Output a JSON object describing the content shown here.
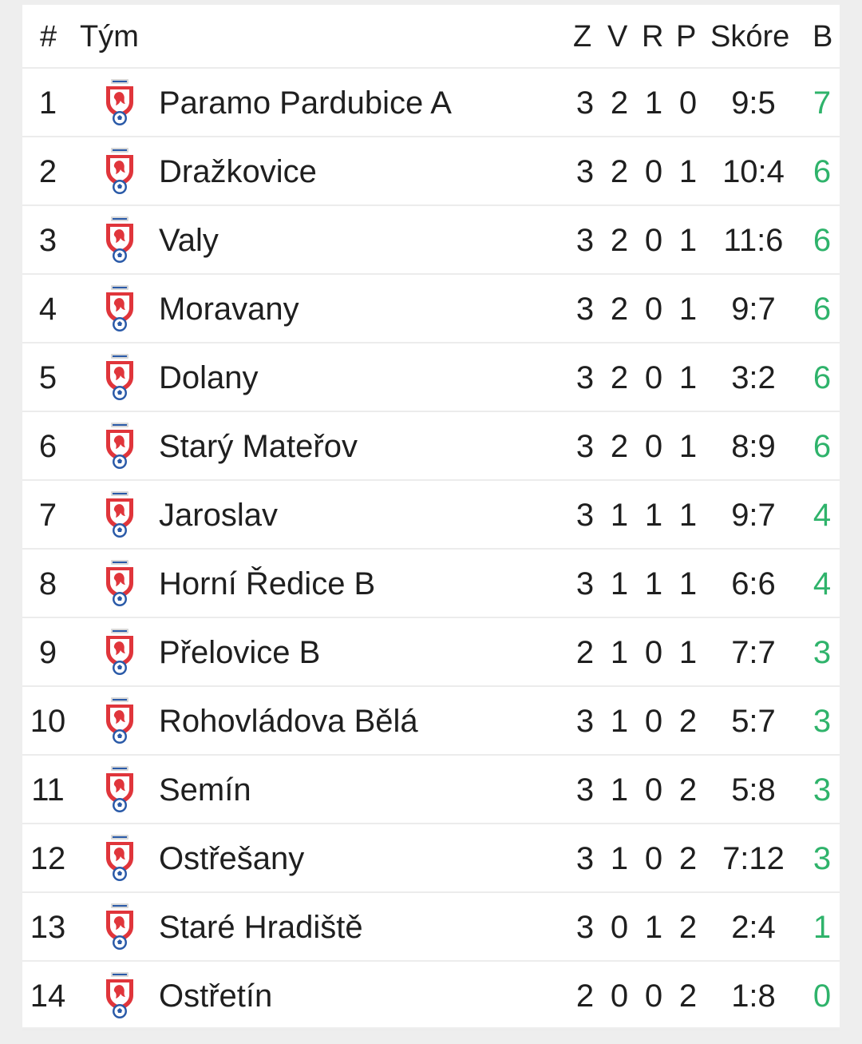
{
  "header": {
    "rank": "#",
    "team": "Tým",
    "played": "Z",
    "won": "V",
    "drawn": "R",
    "lost": "P",
    "score": "Skóre",
    "points": "B"
  },
  "logo_icon": "facr-crest-icon",
  "colors": {
    "points": "#2fb36b",
    "crest_red": "#e0353b",
    "crest_blue": "#2a5aa8"
  },
  "rows": [
    {
      "rank": "1",
      "team": "Paramo Pardubice A",
      "z": "3",
      "v": "2",
      "r": "1",
      "p": "0",
      "score": "9:5",
      "points": "7"
    },
    {
      "rank": "2",
      "team": "Dražkovice",
      "z": "3",
      "v": "2",
      "r": "0",
      "p": "1",
      "score": "10:4",
      "points": "6"
    },
    {
      "rank": "3",
      "team": "Valy",
      "z": "3",
      "v": "2",
      "r": "0",
      "p": "1",
      "score": "11:6",
      "points": "6"
    },
    {
      "rank": "4",
      "team": "Moravany",
      "z": "3",
      "v": "2",
      "r": "0",
      "p": "1",
      "score": "9:7",
      "points": "6"
    },
    {
      "rank": "5",
      "team": "Dolany",
      "z": "3",
      "v": "2",
      "r": "0",
      "p": "1",
      "score": "3:2",
      "points": "6"
    },
    {
      "rank": "6",
      "team": "Starý Mateřov",
      "z": "3",
      "v": "2",
      "r": "0",
      "p": "1",
      "score": "8:9",
      "points": "6"
    },
    {
      "rank": "7",
      "team": "Jaroslav",
      "z": "3",
      "v": "1",
      "r": "1",
      "p": "1",
      "score": "9:7",
      "points": "4"
    },
    {
      "rank": "8",
      "team": "Horní Ředice B",
      "z": "3",
      "v": "1",
      "r": "1",
      "p": "1",
      "score": "6:6",
      "points": "4"
    },
    {
      "rank": "9",
      "team": "Přelovice B",
      "z": "2",
      "v": "1",
      "r": "0",
      "p": "1",
      "score": "7:7",
      "points": "3"
    },
    {
      "rank": "10",
      "team": "Rohovládova Bělá",
      "z": "3",
      "v": "1",
      "r": "0",
      "p": "2",
      "score": "5:7",
      "points": "3"
    },
    {
      "rank": "11",
      "team": "Semín",
      "z": "3",
      "v": "1",
      "r": "0",
      "p": "2",
      "score": "5:8",
      "points": "3"
    },
    {
      "rank": "12",
      "team": "Ostřešany",
      "z": "3",
      "v": "1",
      "r": "0",
      "p": "2",
      "score": "7:12",
      "points": "3"
    },
    {
      "rank": "13",
      "team": "Staré Hradiště",
      "z": "3",
      "v": "0",
      "r": "1",
      "p": "2",
      "score": "2:4",
      "points": "1"
    },
    {
      "rank": "14",
      "team": "Ostřetín",
      "z": "2",
      "v": "0",
      "r": "0",
      "p": "2",
      "score": "1:8",
      "points": "0"
    }
  ]
}
